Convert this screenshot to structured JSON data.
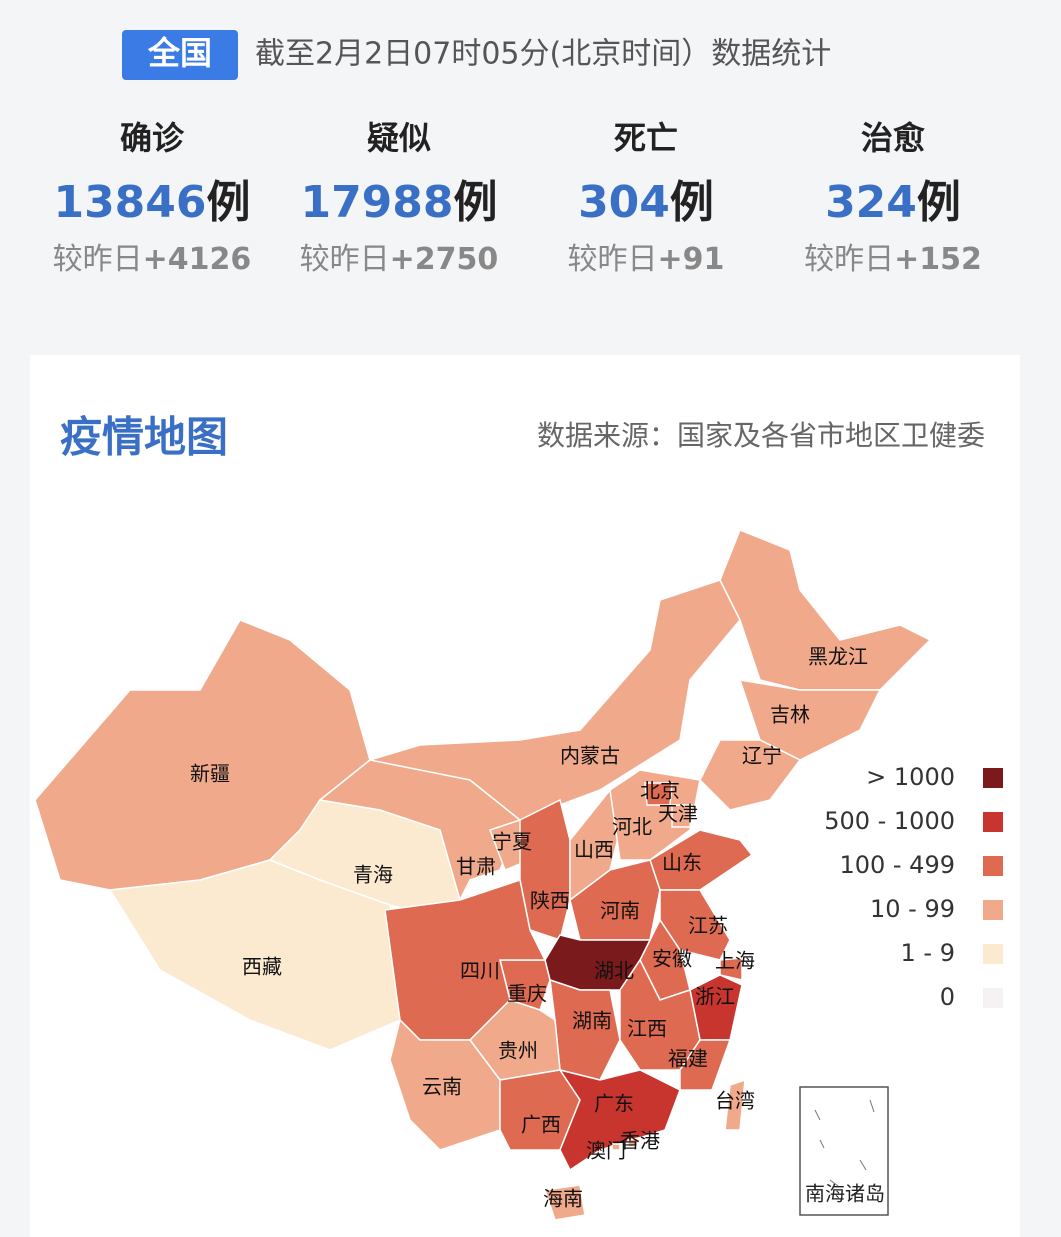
{
  "header": {
    "badge": "全国",
    "timestamp": "截至2月2日07时05分(北京时间）数据统计"
  },
  "stats": [
    {
      "label": "确诊",
      "value": 13846,
      "unit": "例",
      "change_prefix": "较昨日",
      "change": "+4126"
    },
    {
      "label": "疑似",
      "value": 17988,
      "unit": "例",
      "change_prefix": "较昨日",
      "change": "+2750"
    },
    {
      "label": "死亡",
      "value": 304,
      "unit": "例",
      "change_prefix": "较昨日",
      "change": "+91"
    },
    {
      "label": "治愈",
      "value": 324,
      "unit": "例",
      "change_prefix": "较昨日",
      "change": "+152"
    }
  ],
  "map": {
    "title": "疫情地图",
    "source": "数据来源：国家及各省市地区卫健委",
    "legend": [
      {
        "label": "> 1000",
        "color": "#7a1a1c"
      },
      {
        "label": "500 - 1000",
        "color": "#c8352e"
      },
      {
        "label": "100 - 499",
        "color": "#df6a52"
      },
      {
        "label": "10 - 99",
        "color": "#f0a98b"
      },
      {
        "label": "1 - 9",
        "color": "#fbead0"
      },
      {
        "label": "0",
        "color": "#f6f2f3"
      }
    ],
    "regions": [
      {
        "name": "新疆",
        "color": "#f0a98b"
      },
      {
        "name": "西藏",
        "color": "#fbead0"
      },
      {
        "name": "青海",
        "color": "#fbead0"
      },
      {
        "name": "甘肃",
        "color": "#f0a98b"
      },
      {
        "name": "内蒙古",
        "color": "#f0a98b"
      },
      {
        "name": "黑龙江",
        "color": "#f0a98b"
      },
      {
        "name": "吉林",
        "color": "#f0a98b"
      },
      {
        "name": "辽宁",
        "color": "#f0a98b"
      },
      {
        "name": "宁夏",
        "color": "#f0a98b"
      },
      {
        "name": "陕西",
        "color": "#df6a52"
      },
      {
        "name": "山西",
        "color": "#f0a98b"
      },
      {
        "name": "河北",
        "color": "#f0a98b"
      },
      {
        "name": "北京",
        "color": "#df6a52"
      },
      {
        "name": "天津",
        "color": "#f0a98b"
      },
      {
        "name": "山东",
        "color": "#df6a52"
      },
      {
        "name": "河南",
        "color": "#df6a52"
      },
      {
        "name": "江苏",
        "color": "#df6a52"
      },
      {
        "name": "安徽",
        "color": "#df6a52"
      },
      {
        "name": "上海",
        "color": "#df6a52"
      },
      {
        "name": "浙江",
        "color": "#c8352e"
      },
      {
        "name": "湖北",
        "color": "#7a1a1c"
      },
      {
        "name": "重庆",
        "color": "#df6a52"
      },
      {
        "name": "四川",
        "color": "#df6a52"
      },
      {
        "name": "湖南",
        "color": "#df6a52"
      },
      {
        "name": "江西",
        "color": "#df6a52"
      },
      {
        "name": "福建",
        "color": "#df6a52"
      },
      {
        "name": "贵州",
        "color": "#f0a98b"
      },
      {
        "name": "云南",
        "color": "#f0a98b"
      },
      {
        "name": "广西",
        "color": "#df6a52"
      },
      {
        "name": "广东",
        "color": "#c8352e"
      },
      {
        "name": "海南",
        "color": "#f0a98b"
      },
      {
        "name": "台湾",
        "color": "#f0a98b"
      },
      {
        "name": "香港",
        "color": "#f0a98b"
      },
      {
        "name": "澳门",
        "color": "#f0a98b"
      }
    ],
    "inset_label": "南海诸岛"
  }
}
